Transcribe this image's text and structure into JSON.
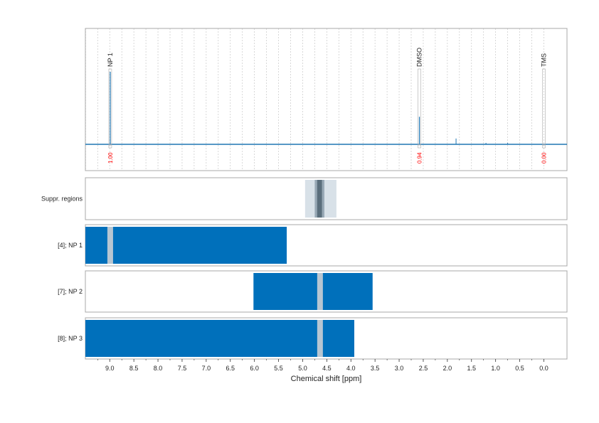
{
  "chart_data": {
    "type": "line",
    "x_axis": {
      "label": "Chemical shift [ppm]",
      "range": [
        9.52,
        -0.48
      ],
      "reversed": true,
      "ticks": [
        9.0,
        8.5,
        8.0,
        7.5,
        7.0,
        6.5,
        6.0,
        5.5,
        5.0,
        4.5,
        4.0,
        3.5,
        3.0,
        2.5,
        2.0,
        1.5,
        1.0,
        0.5,
        0.0
      ],
      "tick_labels": [
        "9.0",
        "8.5",
        "8.0",
        "7.5",
        "7.0",
        "6.5",
        "6.0",
        "5.5",
        "5.0",
        "4.5",
        "4.0",
        "3.5",
        "3.0",
        "2.5",
        "2.0",
        "1.5",
        "1.0",
        "0.5",
        "0.0"
      ],
      "grid": true
    },
    "spectrum": {
      "peaks": [
        {
          "label": "NP 1",
          "shift": 8.99,
          "height": 1.0,
          "integral": "1.00"
        },
        {
          "label": "DMSO",
          "shift": 2.58,
          "height": 0.38,
          "integral": "0.94"
        },
        {
          "label": "TMS",
          "shift": 0.0,
          "height": 0.0,
          "integral": "0.00"
        }
      ],
      "minor_peaks": [
        {
          "shift": 1.82,
          "height": 0.08
        },
        {
          "shift": 1.2,
          "height": 0.02
        },
        {
          "shift": 0.75,
          "height": 0.02
        }
      ]
    },
    "suppressed_regions": {
      "label": "Suppr. regions",
      "bands": [
        {
          "from": 4.95,
          "to": 4.3,
          "shade": "light"
        },
        {
          "from": 4.75,
          "to": 4.55,
          "shade": "medium"
        },
        {
          "from": 4.7,
          "to": 4.6,
          "shade": "dark"
        }
      ]
    },
    "ranges": [
      {
        "label": "[4]; NP 1",
        "from": 9.52,
        "to": 5.33,
        "gaps": [
          8.99
        ]
      },
      {
        "label": "[7]; NP 2",
        "from": 6.02,
        "to": 3.55,
        "gaps": [
          4.64
        ]
      },
      {
        "label": "[8]; NP 3",
        "from": 9.52,
        "to": 3.93,
        "gaps": [
          4.64
        ]
      }
    ],
    "colors": {
      "spectrum": "#1f77b4",
      "range_fill": "#0070bb",
      "gap": "#b7c6d2",
      "integral_text": "#ff0000",
      "suppr_light": "#d8e1e8",
      "suppr_medium": "#98a9b6",
      "suppr_dark": "#5a6e7c",
      "grid": "#c8c8c8",
      "frame": "#a8a8a8"
    }
  }
}
